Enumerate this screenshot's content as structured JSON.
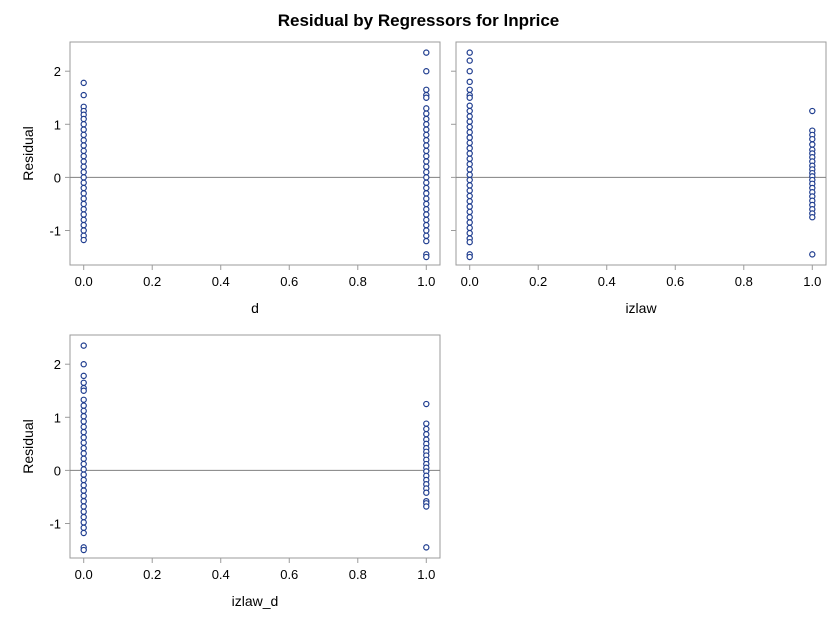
{
  "title": "Residual by Regressors for lnprice",
  "colors": {
    "marker": "#1f3d8f",
    "marker_fill": "#ffffff",
    "reference_line": "#808080",
    "frame": "#9b9b9b",
    "text": "#000000"
  },
  "chart_data": [
    {
      "type": "scatter",
      "title": "",
      "xlabel": "d",
      "ylabel": "Residual",
      "xlim": [
        -0.04,
        1.04
      ],
      "ylim": [
        -1.65,
        2.55
      ],
      "x_ticks": [
        0.0,
        0.2,
        0.4,
        0.6,
        0.8,
        1.0
      ],
      "x_tick_labels": [
        "0.0",
        "0.2",
        "0.4",
        "0.6",
        "0.8",
        "1.0"
      ],
      "y_ticks": [
        -1,
        0,
        1,
        2
      ],
      "y_tick_labels": [
        "-1",
        "0",
        "1",
        "2"
      ],
      "reference_line_y": 0,
      "grid": false,
      "series": [
        {
          "points": [
            {
              "x": 0,
              "y": 1.78
            },
            {
              "x": 0,
              "y": 1.55
            },
            {
              "x": 0,
              "y": 1.33
            },
            {
              "x": 0,
              "y": 1.25
            },
            {
              "x": 0,
              "y": 1.18
            },
            {
              "x": 0,
              "y": 1.1
            },
            {
              "x": 0,
              "y": 1.0
            },
            {
              "x": 0,
              "y": 0.9
            },
            {
              "x": 0,
              "y": 0.8
            },
            {
              "x": 0,
              "y": 0.7
            },
            {
              "x": 0,
              "y": 0.6
            },
            {
              "x": 0,
              "y": 0.5
            },
            {
              "x": 0,
              "y": 0.4
            },
            {
              "x": 0,
              "y": 0.3
            },
            {
              "x": 0,
              "y": 0.2
            },
            {
              "x": 0,
              "y": 0.1
            },
            {
              "x": 0,
              "y": 0.0
            },
            {
              "x": 0,
              "y": -0.1
            },
            {
              "x": 0,
              "y": -0.2
            },
            {
              "x": 0,
              "y": -0.3
            },
            {
              "x": 0,
              "y": -0.4
            },
            {
              "x": 0,
              "y": -0.5
            },
            {
              "x": 0,
              "y": -0.6
            },
            {
              "x": 0,
              "y": -0.7
            },
            {
              "x": 0,
              "y": -0.8
            },
            {
              "x": 0,
              "y": -0.9
            },
            {
              "x": 0,
              "y": -1.0
            },
            {
              "x": 0,
              "y": -1.1
            },
            {
              "x": 0,
              "y": -1.18
            },
            {
              "x": 1,
              "y": 2.35
            },
            {
              "x": 1,
              "y": 2.0
            },
            {
              "x": 1,
              "y": 1.65
            },
            {
              "x": 1,
              "y": 1.55
            },
            {
              "x": 1,
              "y": 1.5
            },
            {
              "x": 1,
              "y": 1.3
            },
            {
              "x": 1,
              "y": 1.2
            },
            {
              "x": 1,
              "y": 1.1
            },
            {
              "x": 1,
              "y": 1.0
            },
            {
              "x": 1,
              "y": 0.9
            },
            {
              "x": 1,
              "y": 0.8
            },
            {
              "x": 1,
              "y": 0.7
            },
            {
              "x": 1,
              "y": 0.6
            },
            {
              "x": 1,
              "y": 0.5
            },
            {
              "x": 1,
              "y": 0.4
            },
            {
              "x": 1,
              "y": 0.3
            },
            {
              "x": 1,
              "y": 0.2
            },
            {
              "x": 1,
              "y": 0.1
            },
            {
              "x": 1,
              "y": 0.0
            },
            {
              "x": 1,
              "y": -0.1
            },
            {
              "x": 1,
              "y": -0.2
            },
            {
              "x": 1,
              "y": -0.3
            },
            {
              "x": 1,
              "y": -0.4
            },
            {
              "x": 1,
              "y": -0.5
            },
            {
              "x": 1,
              "y": -0.6
            },
            {
              "x": 1,
              "y": -0.7
            },
            {
              "x": 1,
              "y": -0.8
            },
            {
              "x": 1,
              "y": -0.9
            },
            {
              "x": 1,
              "y": -1.0
            },
            {
              "x": 1,
              "y": -1.1
            },
            {
              "x": 1,
              "y": -1.2
            },
            {
              "x": 1,
              "y": -1.45
            },
            {
              "x": 1,
              "y": -1.5
            }
          ]
        }
      ]
    },
    {
      "type": "scatter",
      "title": "",
      "xlabel": "izlaw",
      "ylabel": "",
      "xlim": [
        -0.04,
        1.04
      ],
      "ylim": [
        -1.65,
        2.55
      ],
      "x_ticks": [
        0.0,
        0.2,
        0.4,
        0.6,
        0.8,
        1.0
      ],
      "x_tick_labels": [
        "0.0",
        "0.2",
        "0.4",
        "0.6",
        "0.8",
        "1.0"
      ],
      "y_ticks": [
        -1,
        0,
        1,
        2
      ],
      "y_tick_labels": [],
      "reference_line_y": 0,
      "grid": false,
      "series": [
        {
          "points": [
            {
              "x": 0,
              "y": 2.35
            },
            {
              "x": 0,
              "y": 2.2
            },
            {
              "x": 0,
              "y": 2.0
            },
            {
              "x": 0,
              "y": 1.8
            },
            {
              "x": 0,
              "y": 1.65
            },
            {
              "x": 0,
              "y": 1.55
            },
            {
              "x": 0,
              "y": 1.5
            },
            {
              "x": 0,
              "y": 1.35
            },
            {
              "x": 0,
              "y": 1.25
            },
            {
              "x": 0,
              "y": 1.15
            },
            {
              "x": 0,
              "y": 1.05
            },
            {
              "x": 0,
              "y": 0.95
            },
            {
              "x": 0,
              "y": 0.85
            },
            {
              "x": 0,
              "y": 0.75
            },
            {
              "x": 0,
              "y": 0.65
            },
            {
              "x": 0,
              "y": 0.55
            },
            {
              "x": 0,
              "y": 0.45
            },
            {
              "x": 0,
              "y": 0.35
            },
            {
              "x": 0,
              "y": 0.25
            },
            {
              "x": 0,
              "y": 0.15
            },
            {
              "x": 0,
              "y": 0.05
            },
            {
              "x": 0,
              "y": -0.05
            },
            {
              "x": 0,
              "y": -0.15
            },
            {
              "x": 0,
              "y": -0.25
            },
            {
              "x": 0,
              "y": -0.35
            },
            {
              "x": 0,
              "y": -0.45
            },
            {
              "x": 0,
              "y": -0.55
            },
            {
              "x": 0,
              "y": -0.65
            },
            {
              "x": 0,
              "y": -0.75
            },
            {
              "x": 0,
              "y": -0.85
            },
            {
              "x": 0,
              "y": -0.95
            },
            {
              "x": 0,
              "y": -1.05
            },
            {
              "x": 0,
              "y": -1.15
            },
            {
              "x": 0,
              "y": -1.22
            },
            {
              "x": 0,
              "y": -1.45
            },
            {
              "x": 0,
              "y": -1.5
            },
            {
              "x": 1,
              "y": 1.25
            },
            {
              "x": 1,
              "y": 0.88
            },
            {
              "x": 1,
              "y": 0.8
            },
            {
              "x": 1,
              "y": 0.72
            },
            {
              "x": 1,
              "y": 0.62
            },
            {
              "x": 1,
              "y": 0.52
            },
            {
              "x": 1,
              "y": 0.45
            },
            {
              "x": 1,
              "y": 0.38
            },
            {
              "x": 1,
              "y": 0.3
            },
            {
              "x": 1,
              "y": 0.22
            },
            {
              "x": 1,
              "y": 0.15
            },
            {
              "x": 1,
              "y": 0.08
            },
            {
              "x": 1,
              "y": 0.02
            },
            {
              "x": 1,
              "y": -0.05
            },
            {
              "x": 1,
              "y": -0.12
            },
            {
              "x": 1,
              "y": -0.2
            },
            {
              "x": 1,
              "y": -0.28
            },
            {
              "x": 1,
              "y": -0.36
            },
            {
              "x": 1,
              "y": -0.44
            },
            {
              "x": 1,
              "y": -0.52
            },
            {
              "x": 1,
              "y": -0.6
            },
            {
              "x": 1,
              "y": -0.68
            },
            {
              "x": 1,
              "y": -0.75
            },
            {
              "x": 1,
              "y": -1.45
            }
          ]
        }
      ]
    },
    {
      "type": "scatter",
      "title": "",
      "xlabel": "izlaw_d",
      "ylabel": "Residual",
      "xlim": [
        -0.04,
        1.04
      ],
      "ylim": [
        -1.65,
        2.55
      ],
      "x_ticks": [
        0.0,
        0.2,
        0.4,
        0.6,
        0.8,
        1.0
      ],
      "x_tick_labels": [
        "0.0",
        "0.2",
        "0.4",
        "0.6",
        "0.8",
        "1.0"
      ],
      "y_ticks": [
        -1,
        0,
        1,
        2
      ],
      "y_tick_labels": [
        "-1",
        "0",
        "1",
        "2"
      ],
      "reference_line_y": 0,
      "grid": false,
      "series": [
        {
          "points": [
            {
              "x": 0,
              "y": 2.35
            },
            {
              "x": 0,
              "y": 2.0
            },
            {
              "x": 0,
              "y": 1.78
            },
            {
              "x": 0,
              "y": 1.65
            },
            {
              "x": 0,
              "y": 1.55
            },
            {
              "x": 0,
              "y": 1.5
            },
            {
              "x": 0,
              "y": 1.33
            },
            {
              "x": 0,
              "y": 1.22
            },
            {
              "x": 0,
              "y": 1.12
            },
            {
              "x": 0,
              "y": 1.02
            },
            {
              "x": 0,
              "y": 0.92
            },
            {
              "x": 0,
              "y": 0.82
            },
            {
              "x": 0,
              "y": 0.72
            },
            {
              "x": 0,
              "y": 0.62
            },
            {
              "x": 0,
              "y": 0.52
            },
            {
              "x": 0,
              "y": 0.42
            },
            {
              "x": 0,
              "y": 0.32
            },
            {
              "x": 0,
              "y": 0.22
            },
            {
              "x": 0,
              "y": 0.12
            },
            {
              "x": 0,
              "y": 0.02
            },
            {
              "x": 0,
              "y": -0.08
            },
            {
              "x": 0,
              "y": -0.18
            },
            {
              "x": 0,
              "y": -0.28
            },
            {
              "x": 0,
              "y": -0.38
            },
            {
              "x": 0,
              "y": -0.48
            },
            {
              "x": 0,
              "y": -0.58
            },
            {
              "x": 0,
              "y": -0.68
            },
            {
              "x": 0,
              "y": -0.78
            },
            {
              "x": 0,
              "y": -0.88
            },
            {
              "x": 0,
              "y": -0.98
            },
            {
              "x": 0,
              "y": -1.08
            },
            {
              "x": 0,
              "y": -1.18
            },
            {
              "x": 0,
              "y": -1.45
            },
            {
              "x": 0,
              "y": -1.5
            },
            {
              "x": 1,
              "y": 1.25
            },
            {
              "x": 1,
              "y": 0.88
            },
            {
              "x": 1,
              "y": 0.78
            },
            {
              "x": 1,
              "y": 0.68
            },
            {
              "x": 1,
              "y": 0.58
            },
            {
              "x": 1,
              "y": 0.5
            },
            {
              "x": 1,
              "y": 0.42
            },
            {
              "x": 1,
              "y": 0.35
            },
            {
              "x": 1,
              "y": 0.28
            },
            {
              "x": 1,
              "y": 0.2
            },
            {
              "x": 1,
              "y": 0.12
            },
            {
              "x": 1,
              "y": 0.05
            },
            {
              "x": 1,
              "y": -0.02
            },
            {
              "x": 1,
              "y": -0.1
            },
            {
              "x": 1,
              "y": -0.18
            },
            {
              "x": 1,
              "y": -0.26
            },
            {
              "x": 1,
              "y": -0.34
            },
            {
              "x": 1,
              "y": -0.42
            },
            {
              "x": 1,
              "y": -0.58
            },
            {
              "x": 1,
              "y": -0.62
            },
            {
              "x": 1,
              "y": -0.68
            },
            {
              "x": 1,
              "y": -1.45
            }
          ]
        }
      ]
    }
  ]
}
